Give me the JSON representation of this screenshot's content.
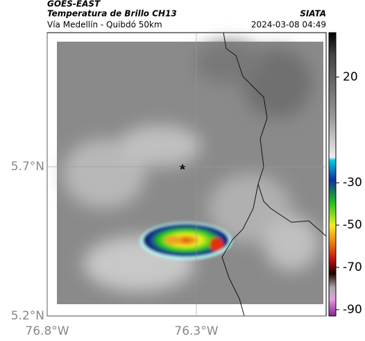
{
  "header": {
    "source": "GOES-EAST",
    "title": "Temperatura de Brillo CH13",
    "brand": "SIATA",
    "subtitle": "Vía Medellín - Quibdó 50km",
    "timestamp": "2024-03-08 04:49"
  },
  "map": {
    "xlim": [
      -76.8,
      -75.865
    ],
    "ylim": [
      5.2,
      6.149
    ],
    "xticks": [
      {
        "value": -76.8,
        "label": "76.8°W"
      },
      {
        "value": -76.3,
        "label": "76.3°W"
      }
    ],
    "yticks": [
      {
        "value": 5.2,
        "label": "5.2°N"
      },
      {
        "value": 5.7,
        "label": "5.7°N"
      }
    ]
  },
  "colorbar": {
    "lim": [
      41,
      -93
    ],
    "ticks": [
      20,
      -30,
      -50,
      -70,
      -90
    ]
  }
}
